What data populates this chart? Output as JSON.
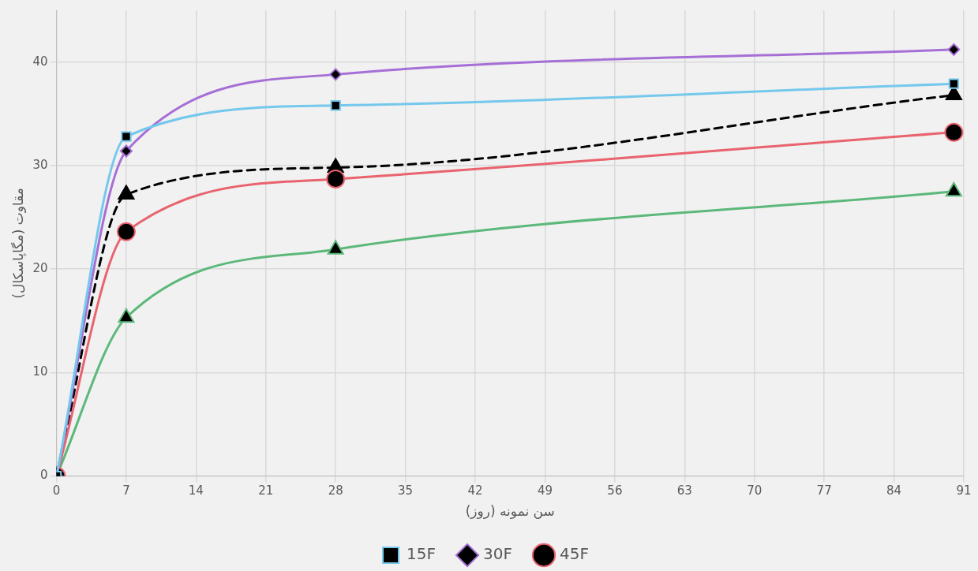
{
  "chart_data": {
    "type": "line",
    "xlabel": "سن نمونه (روز)",
    "ylabel": "مقاوت (مگاپاسکال)",
    "x": [
      0,
      7,
      28,
      90
    ],
    "series": [
      {
        "name": "15F",
        "color": "#74c8ec",
        "marker": "square",
        "values": [
          0,
          32.8,
          35.8,
          37.9
        ]
      },
      {
        "name": "30F",
        "color": "#a66fd6",
        "marker": "diamond",
        "values": [
          0,
          31.4,
          38.8,
          41.2
        ]
      },
      {
        "name": "45F",
        "color": "#e8636e",
        "marker": "circle",
        "values": [
          0,
          23.6,
          28.7,
          33.2
        ]
      },
      {
        "color": "#5cb87a",
        "marker": "triangle",
        "values": [
          0,
          15.3,
          21.9,
          27.5
        ]
      },
      {
        "color": "#000000",
        "marker": "triangle",
        "line_style": "dashed",
        "values": [
          0,
          27.2,
          29.8,
          36.8
        ]
      }
    ],
    "xlim": [
      0,
      91
    ],
    "xticks": [
      0,
      7,
      14,
      21,
      28,
      35,
      42,
      49,
      56,
      63,
      70,
      77,
      84,
      91
    ],
    "ylim": [
      0,
      45
    ],
    "yticks": [
      0,
      10,
      20,
      30,
      40
    ],
    "grid": true,
    "legend": "bottom"
  }
}
